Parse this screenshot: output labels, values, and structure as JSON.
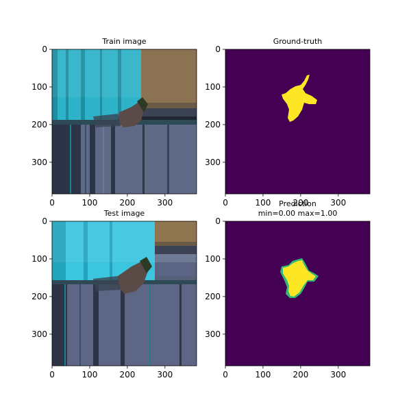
{
  "chart_data": [
    {
      "type": "image",
      "title": "Train image",
      "xlim": [
        0,
        384
      ],
      "ylim": [
        384,
        0
      ],
      "xticks": [
        0,
        100,
        200,
        300
      ],
      "yticks": [
        0,
        100,
        200,
        300
      ],
      "content": "rgb-photo-stretched",
      "palette": {
        "water": "#2fb3c9",
        "water_dark": "#1e8ea2",
        "wood": "#8a7252",
        "floor": "#5f6a86",
        "floor_dark": "#2c3447",
        "fish": "#5a4a48"
      }
    },
    {
      "type": "heatmap",
      "title": "Ground-truth",
      "xlim": [
        0,
        384
      ],
      "ylim": [
        384,
        0
      ],
      "xticks": [
        0,
        100,
        200,
        300
      ],
      "yticks": [
        0,
        100,
        200,
        300
      ],
      "colormap": "viridis",
      "background": "#440154",
      "foreground": "#fde725"
    },
    {
      "type": "image",
      "title": "Test image",
      "xlim": [
        0,
        384
      ],
      "ylim": [
        384,
        0
      ],
      "xticks": [
        0,
        100,
        200,
        300
      ],
      "yticks": [
        0,
        100,
        200,
        300
      ],
      "content": "rgb-photo-stretched",
      "palette": {
        "water": "#3bc5df",
        "water_dark": "#22a4bd",
        "wood": "#8f7651",
        "floor": "#5d6785",
        "floor_dark": "#2d3446",
        "fish": "#5b4b47"
      }
    },
    {
      "type": "heatmap",
      "title": "Prediction",
      "subtitle": "min=0.00 max=1.00",
      "xlim": [
        0,
        384
      ],
      "ylim": [
        384,
        0
      ],
      "xticks": [
        0,
        100,
        200,
        300
      ],
      "yticks": [
        0,
        100,
        200,
        300
      ],
      "colormap": "viridis",
      "background": "#440154",
      "foreground": "#fde725",
      "edge": "#35b779"
    }
  ]
}
